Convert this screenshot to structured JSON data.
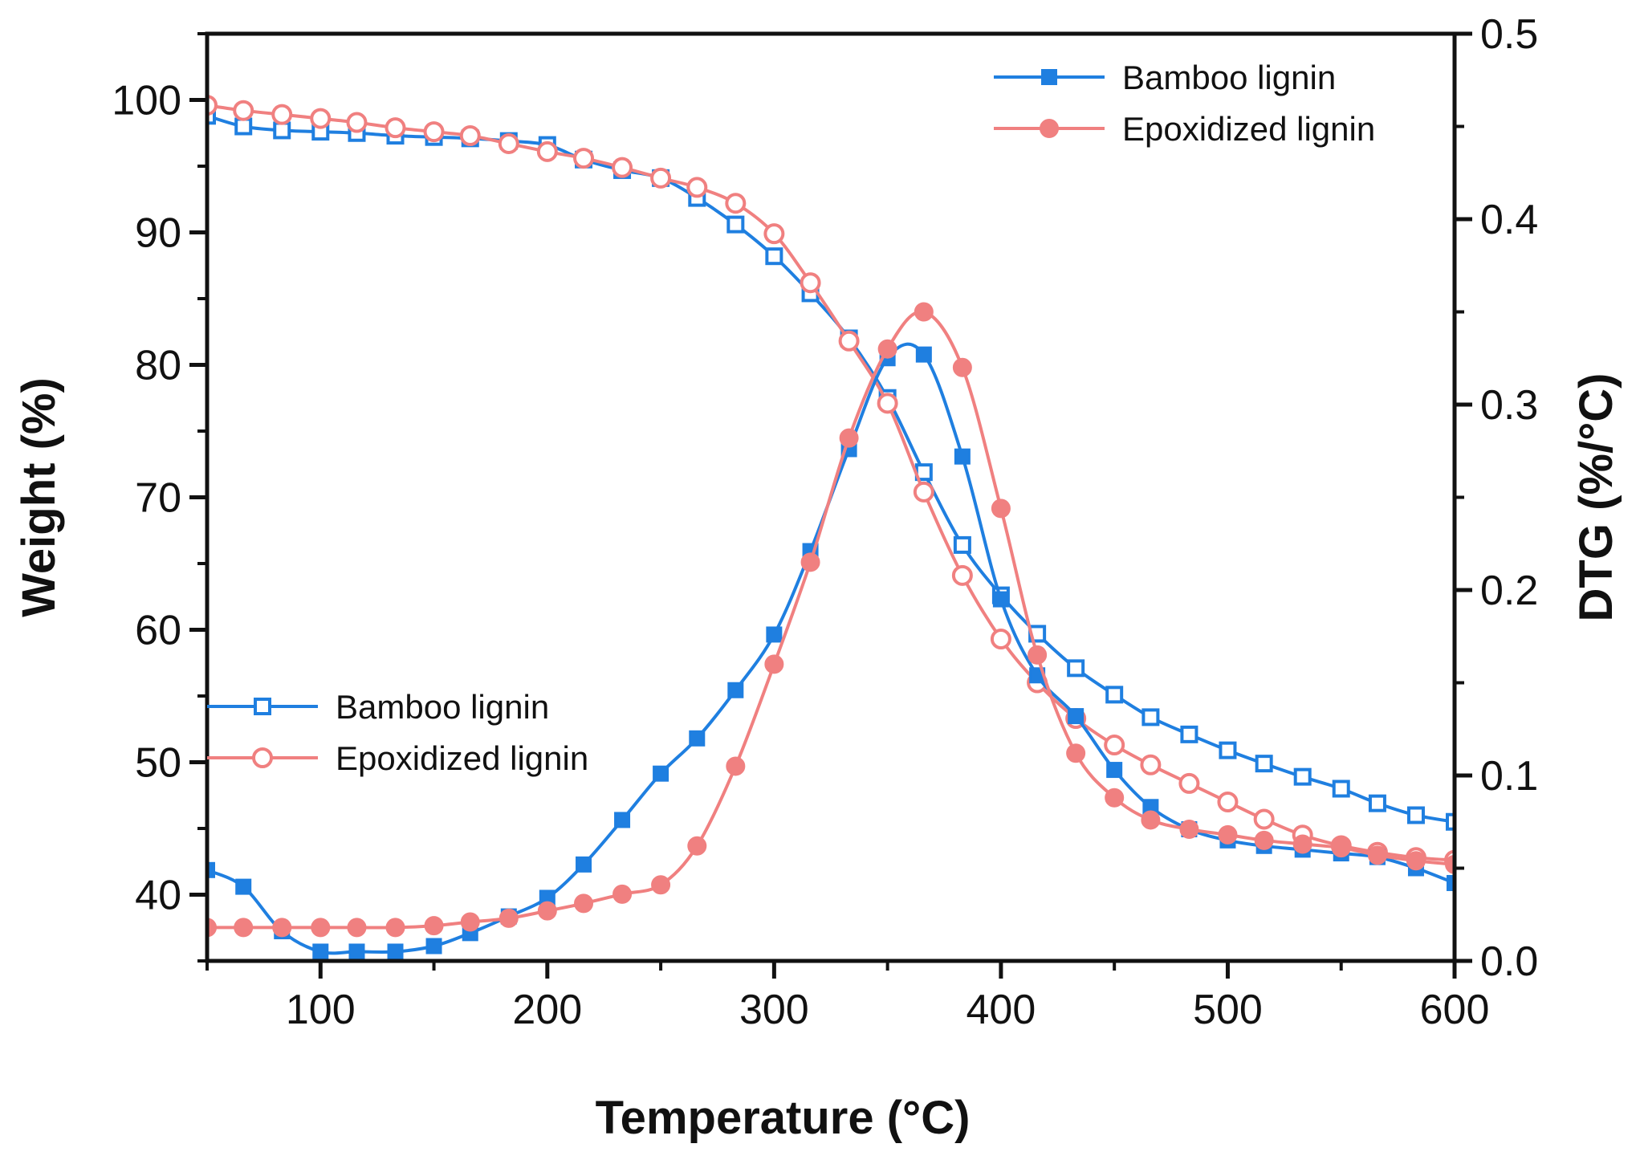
{
  "chart_data": {
    "type": "line",
    "title": "",
    "xlabel": "Temperature",
    "xlabel_unit": "(°C)",
    "ylabel_left": "Weight (%)",
    "ylabel_right": "DTG (%/°C)",
    "xlim": [
      50,
      600
    ],
    "ylim_left": [
      35,
      105
    ],
    "ylim_right": [
      0.0,
      0.5
    ],
    "x_ticks": [
      100,
      200,
      300,
      400,
      500,
      600
    ],
    "y_left_ticks": [
      40,
      50,
      60,
      70,
      80,
      90,
      100
    ],
    "y_right_ticks": [
      0.0,
      0.1,
      0.2,
      0.3,
      0.4,
      0.5
    ],
    "y_right_tick_labels": [
      "0.0",
      "0.1",
      "0.2",
      "0.3",
      "0.4",
      "0.5"
    ],
    "grid": false,
    "legends": [
      {
        "position": "top-right",
        "group": "dtg",
        "entries": [
          "Bamboo lignin",
          "Epoxidized lignin"
        ]
      },
      {
        "position": "middle-left",
        "group": "weight",
        "entries": [
          "Bamboo lignin",
          "Epoxidized lignin"
        ]
      }
    ],
    "colors": {
      "bamboo": "#1f7fe0",
      "epoxidized": "#f08080"
    },
    "series": [
      {
        "name": "Bamboo lignin",
        "group": "weight",
        "axis": "left",
        "marker": "open-square",
        "color": "#1f7fe0",
        "x": [
          50,
          66,
          83,
          100,
          116,
          133,
          150,
          166,
          183,
          200,
          216,
          233,
          250,
          266,
          283,
          300,
          316,
          333,
          350,
          366,
          383,
          400,
          416,
          433,
          450,
          466,
          483,
          500,
          516,
          533,
          550,
          566,
          583,
          600
        ],
        "y": [
          98.8,
          98.0,
          97.7,
          97.6,
          97.5,
          97.3,
          97.2,
          97.1,
          96.9,
          96.6,
          95.5,
          94.7,
          94.1,
          92.6,
          90.6,
          88.2,
          85.4,
          82.0,
          77.5,
          71.9,
          66.4,
          62.6,
          59.7,
          57.1,
          55.1,
          53.4,
          52.1,
          50.9,
          49.9,
          48.9,
          48.0,
          46.9,
          46.0,
          45.5
        ]
      },
      {
        "name": "Epoxidized lignin",
        "group": "weight",
        "axis": "left",
        "marker": "open-circle",
        "color": "#f08080",
        "x": [
          50,
          66,
          83,
          100,
          116,
          133,
          150,
          166,
          183,
          200,
          216,
          233,
          250,
          266,
          283,
          300,
          316,
          333,
          350,
          366,
          383,
          400,
          416,
          433,
          450,
          466,
          483,
          500,
          516,
          533,
          550,
          566,
          583,
          600
        ],
        "y": [
          99.6,
          99.2,
          98.9,
          98.6,
          98.3,
          97.9,
          97.6,
          97.3,
          96.7,
          96.1,
          95.6,
          94.9,
          94.1,
          93.4,
          92.2,
          89.9,
          86.2,
          81.8,
          77.1,
          70.4,
          64.1,
          59.3,
          56.0,
          53.3,
          51.3,
          49.8,
          48.4,
          47.0,
          45.7,
          44.5,
          43.7,
          43.2,
          42.8,
          42.6
        ]
      },
      {
        "name": "Bamboo lignin",
        "group": "dtg",
        "axis": "right",
        "marker": "filled-square",
        "color": "#1f7fe0",
        "x": [
          50,
          66,
          83,
          100,
          116,
          133,
          150,
          166,
          183,
          200,
          216,
          233,
          250,
          266,
          283,
          300,
          316,
          333,
          350,
          366,
          383,
          400,
          416,
          433,
          450,
          466,
          483,
          500,
          516,
          533,
          550,
          566,
          583,
          600
        ],
        "y": [
          0.049,
          0.04,
          0.016,
          0.005,
          0.005,
          0.005,
          0.008,
          0.015,
          0.024,
          0.034,
          0.052,
          0.076,
          0.101,
          0.12,
          0.146,
          0.176,
          0.221,
          0.276,
          0.325,
          0.327,
          0.272,
          0.195,
          0.154,
          0.132,
          0.103,
          0.083,
          0.071,
          0.065,
          0.062,
          0.06,
          0.058,
          0.056,
          0.05,
          0.042
        ]
      },
      {
        "name": "Epoxidized lignin",
        "group": "dtg",
        "axis": "right",
        "marker": "filled-circle",
        "color": "#f08080",
        "x": [
          50,
          66,
          83,
          100,
          116,
          133,
          150,
          166,
          183,
          200,
          216,
          233,
          250,
          266,
          283,
          300,
          316,
          333,
          350,
          366,
          383,
          400,
          416,
          433,
          450,
          466,
          483,
          500,
          516,
          533,
          550,
          566,
          583,
          600
        ],
        "y": [
          0.018,
          0.018,
          0.018,
          0.018,
          0.018,
          0.018,
          0.019,
          0.021,
          0.023,
          0.027,
          0.031,
          0.036,
          0.041,
          0.062,
          0.105,
          0.16,
          0.215,
          0.282,
          0.33,
          0.35,
          0.32,
          0.244,
          0.165,
          0.112,
          0.088,
          0.076,
          0.071,
          0.068,
          0.065,
          0.063,
          0.061,
          0.057,
          0.054,
          0.052
        ]
      }
    ]
  }
}
